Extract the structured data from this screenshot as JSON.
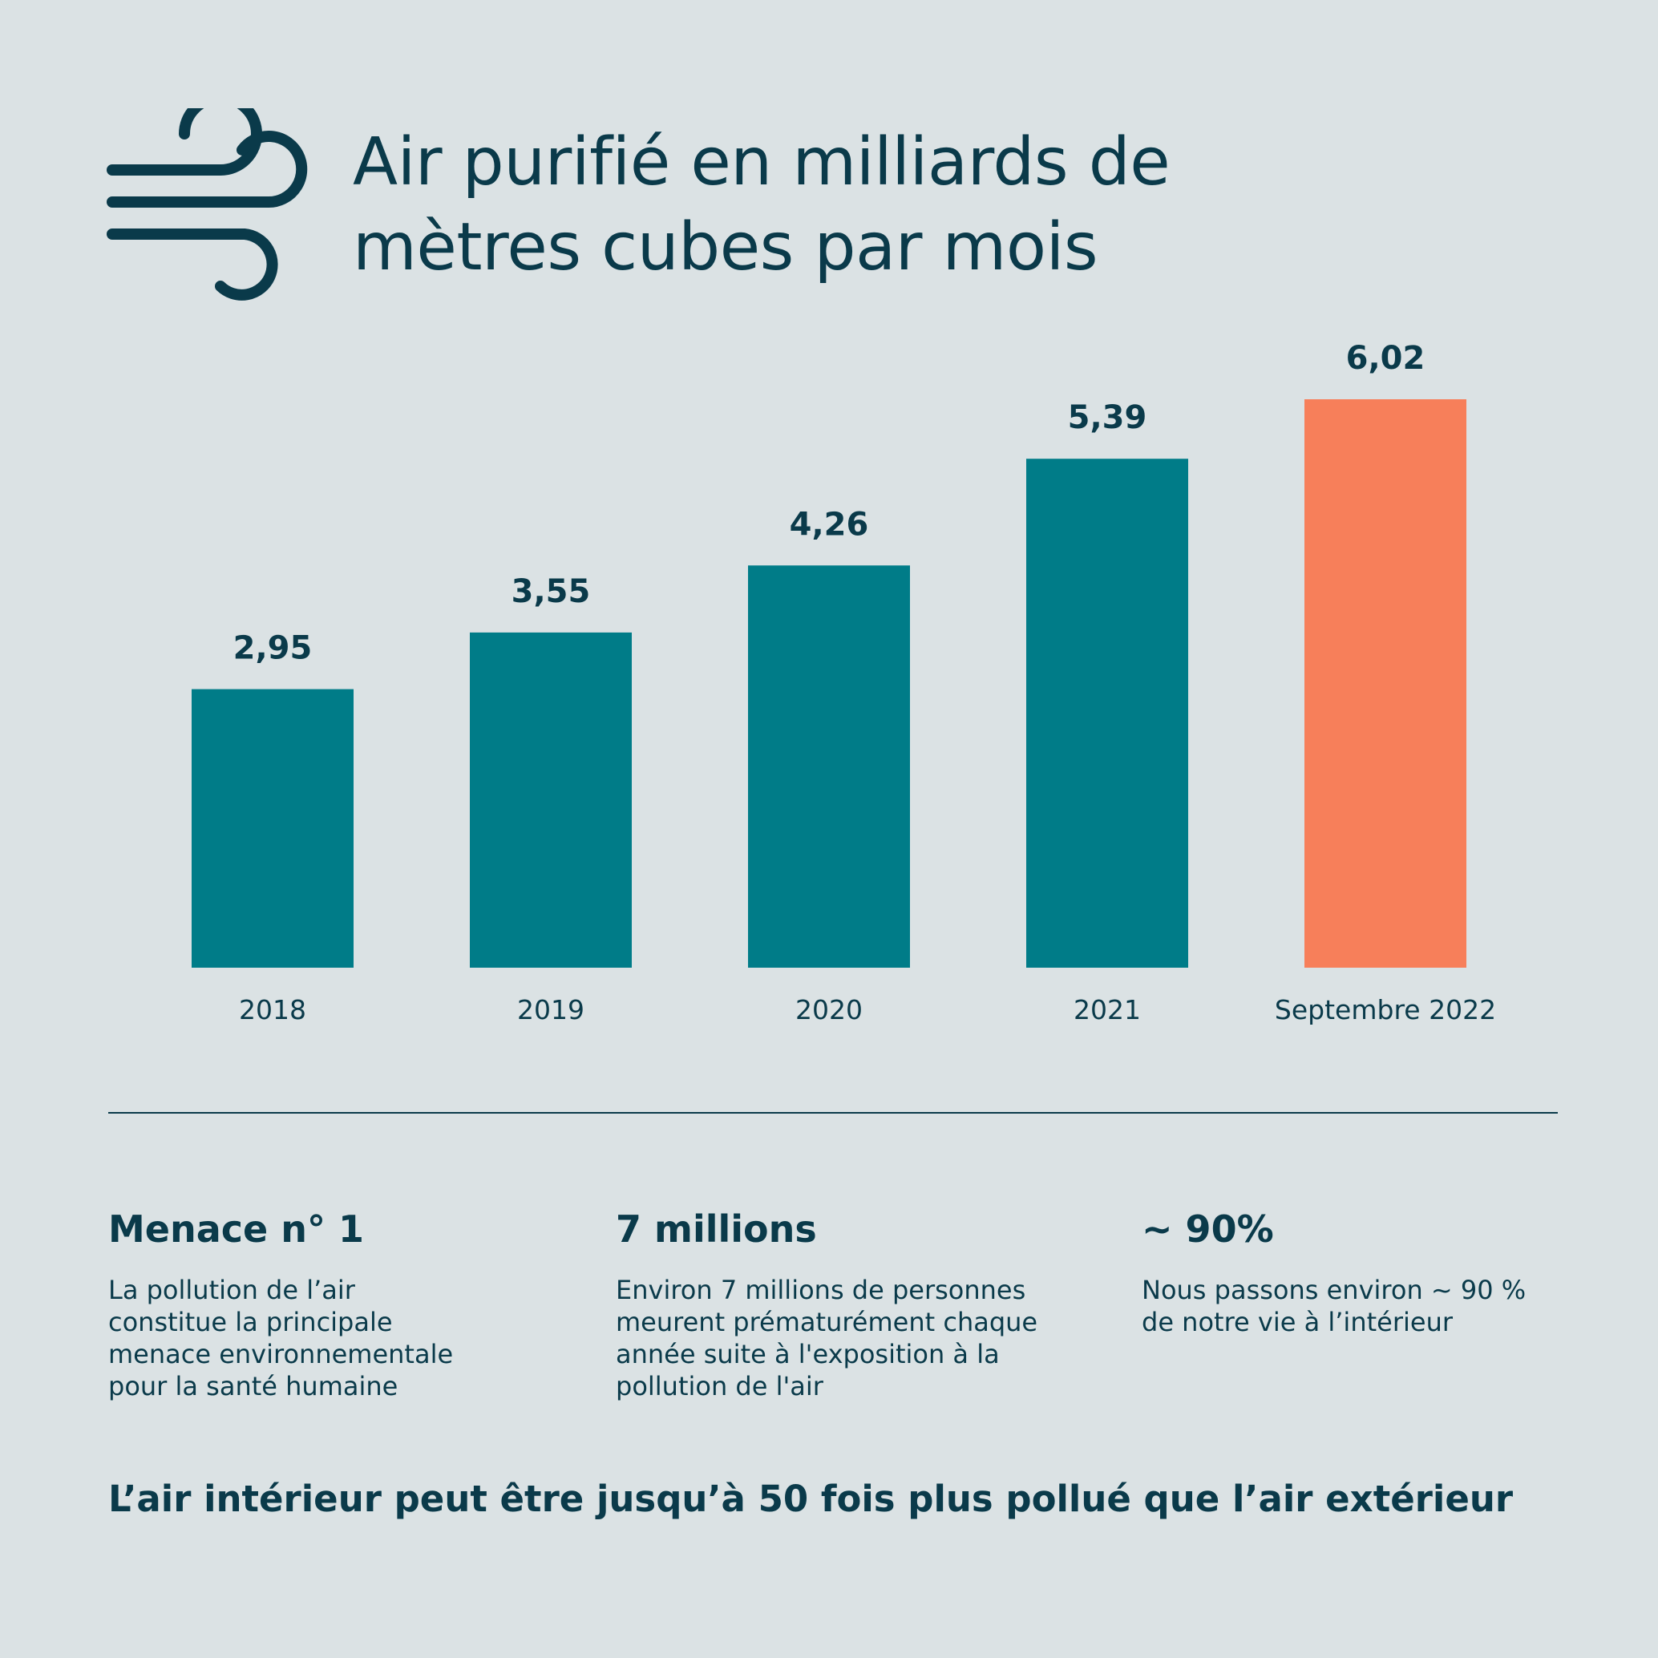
{
  "title": {
    "line1": "Air purifié en milliards de",
    "line2": "mètres cubes par mois"
  },
  "icon": "wind-icon",
  "colors": {
    "background": "#dbe2e4",
    "text": "#0a3a4a",
    "bar": "#007c88",
    "highlight": "#f77f5a"
  },
  "chart_data": {
    "type": "bar",
    "title": "Air purifié en milliards de mètres cubes par mois",
    "categories": [
      "2018",
      "2019",
      "2020",
      "2021",
      "Septembre 2022"
    ],
    "values": [
      2.95,
      3.55,
      4.26,
      5.39,
      6.02
    ],
    "value_labels": [
      "2,95",
      "3,55",
      "4,26",
      "5,39",
      "6,02"
    ],
    "highlight_index": 4,
    "xlabel": "",
    "ylabel": "",
    "ylim": [
      0,
      6.02
    ],
    "grid": false,
    "legend": "none"
  },
  "stats": [
    {
      "title": "Menace n° 1",
      "lines": [
        "La pollution de l’air",
        "constitue la principale",
        "menace environnementale",
        "pour la santé humaine"
      ]
    },
    {
      "title": "7 millions",
      "lines": [
        "Environ 7 millions de personnes",
        "meurent prématurément chaque",
        "année suite à l'exposition à la",
        "pollution de l'air"
      ]
    },
    {
      "title": "~ 90%",
      "lines": [
        "Nous passons environ ~ 90 %",
        "de notre vie à l’intérieur"
      ]
    }
  ],
  "footer": "L’air intérieur peut être jusqu’à 50 fois plus pollué que l’air extérieur"
}
